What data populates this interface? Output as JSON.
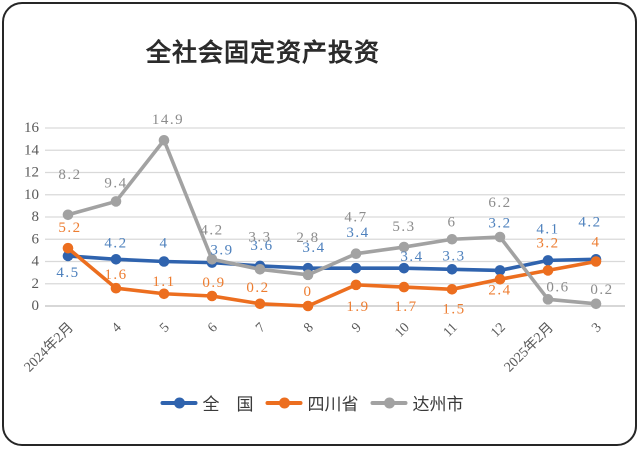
{
  "chart_data": {
    "type": "line",
    "title": "全社会固定资产投资",
    "categories": [
      "2024年2月",
      "4",
      "5",
      "6",
      "7",
      "8",
      "9",
      "10",
      "11",
      "12",
      "2025年2月",
      "3"
    ],
    "series": [
      {
        "name": "全　国",
        "color": "#2F63AE",
        "label_color": "#4E81BD",
        "values": [
          4.5,
          4.2,
          4,
          3.9,
          3.6,
          3.4,
          3.4,
          3.4,
          3.3,
          3.2,
          4.1,
          4.2
        ]
      },
      {
        "name": "四川省",
        "color": "#EC6E1F",
        "label_color": "#ED7D31",
        "values": [
          5.2,
          1.6,
          1.1,
          0.9,
          0.2,
          0,
          1.9,
          1.7,
          1.5,
          2.4,
          3.2,
          4
        ]
      },
      {
        "name": "达州市",
        "color": "#A2A2A2",
        "label_color": "#8C8C8C",
        "values": [
          8.2,
          9.4,
          14.9,
          4.2,
          3.3,
          2.8,
          4.7,
          5.3,
          6,
          6.2,
          0.6,
          0.2
        ]
      }
    ],
    "xlabel": "",
    "ylabel": "",
    "ylim": [
      0,
      16
    ],
    "y_ticks": [
      0,
      2,
      4,
      6,
      8,
      10,
      12,
      14,
      16
    ],
    "grid": true,
    "legend_position": "bottom",
    "colors": {
      "gridline": "#D9D9D9",
      "axis_line": "#BFBFBF",
      "axis_text": "#595959",
      "title_text": "#2B2B2B",
      "legend_text": "#3A3A3A",
      "frame_border": "#262626",
      "background": "#FFFFFF"
    }
  }
}
